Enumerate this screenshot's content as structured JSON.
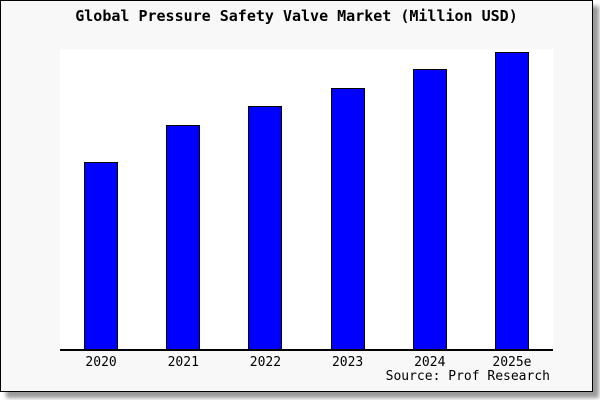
{
  "title": "Global Pressure Safety Valve Market (Million USD)",
  "source_note": "Source: Prof Research",
  "colors": {
    "bar_fill": "#0000ff",
    "bar_border": "#000000",
    "card_background": "#f8f8f8",
    "plot_background": "#ffffff",
    "axis": "#000000",
    "shadow": "#9a9a9a",
    "text": "#000000"
  },
  "chart_data": {
    "type": "bar",
    "title": "Global Pressure Safety Valve Market (Million USD)",
    "categories": [
      "2020",
      "2021",
      "2022",
      "2023",
      "2024",
      "2025e"
    ],
    "values": [
      188,
      225,
      245,
      263,
      282,
      299
    ],
    "value_units": "relative bar height (no y-axis scale shown in chart)",
    "xlabel": "",
    "ylabel": "",
    "ylim": [
      0,
      302
    ],
    "grid": false,
    "legend": false,
    "y_axis_ticks": [],
    "bar_color": "#0000ff",
    "source": "Source: Prof Research"
  }
}
